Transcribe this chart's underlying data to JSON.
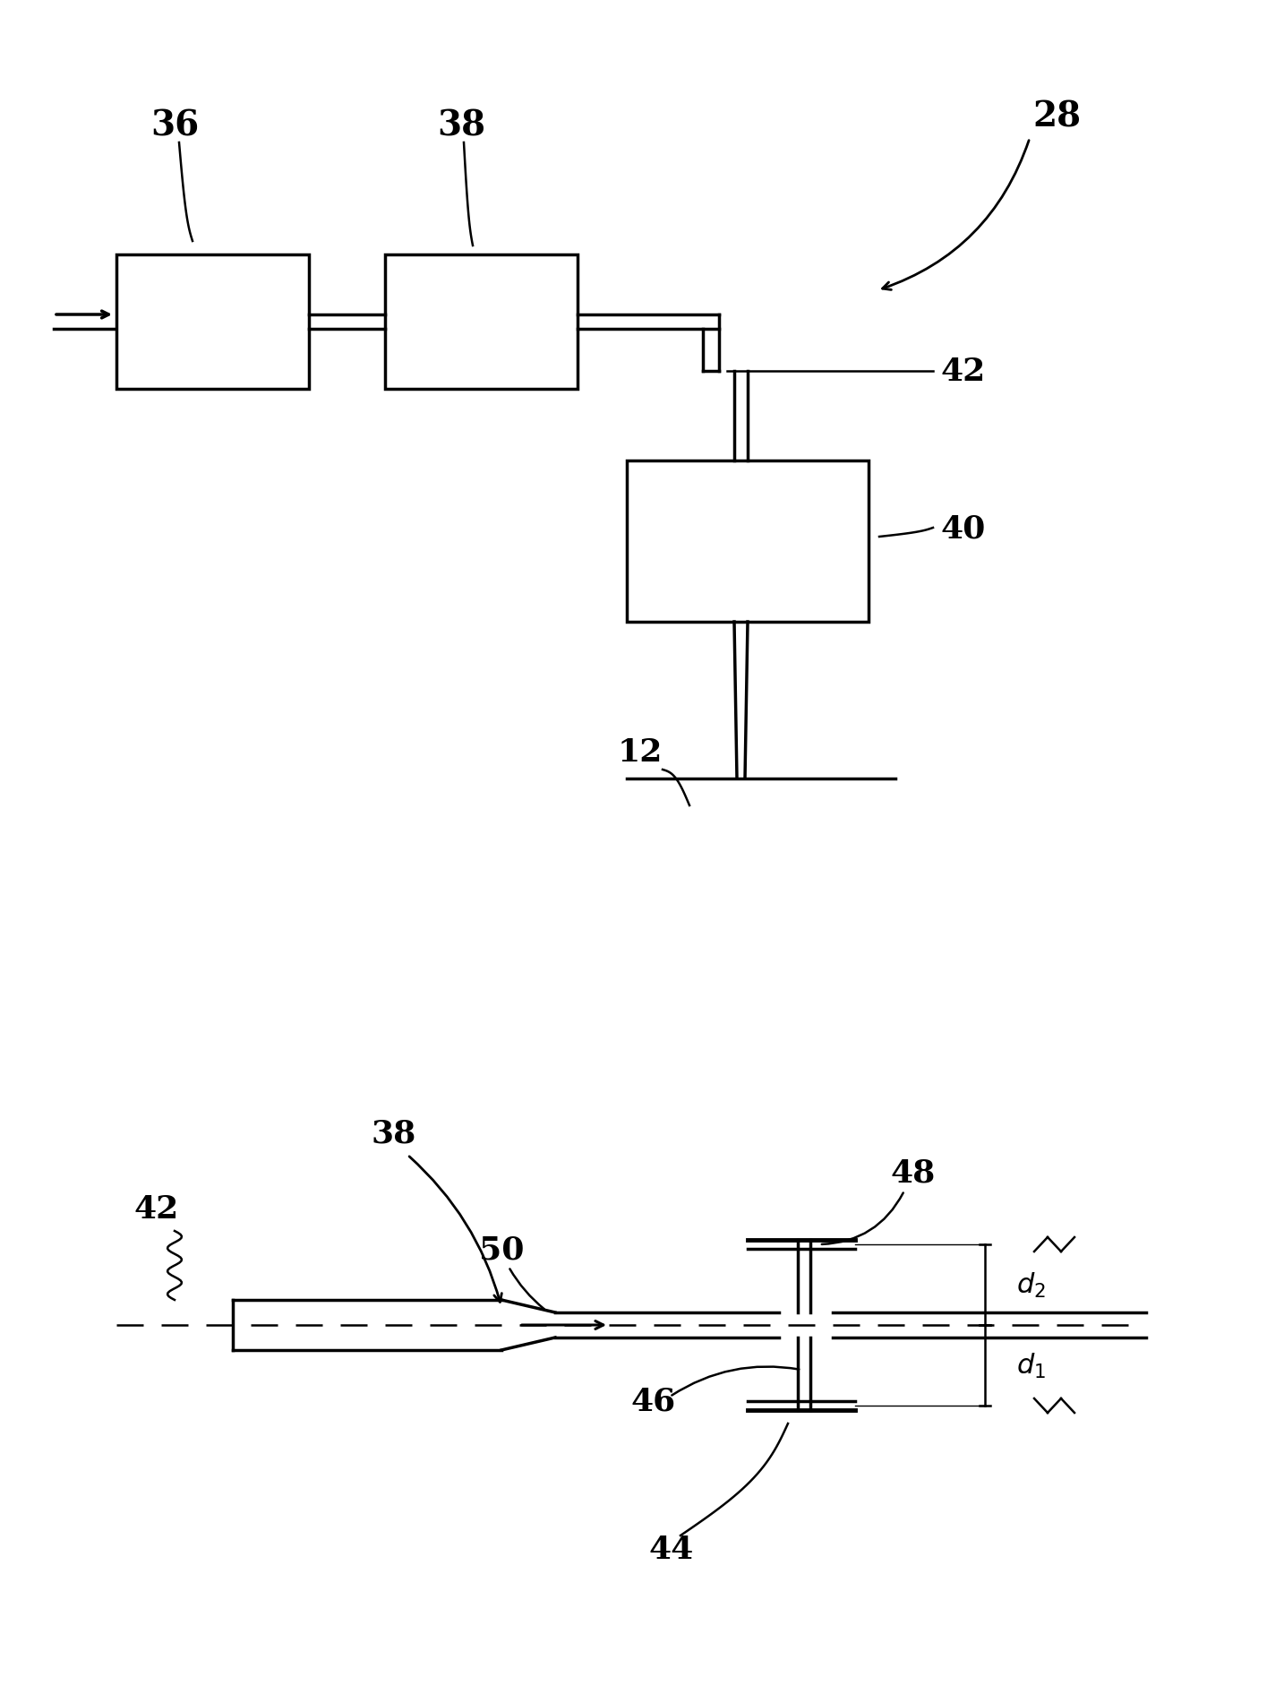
{
  "bg_color": "#ffffff",
  "line_color": "#000000",
  "fig_width": 14.34,
  "fig_height": 18.83,
  "dpi": 100
}
